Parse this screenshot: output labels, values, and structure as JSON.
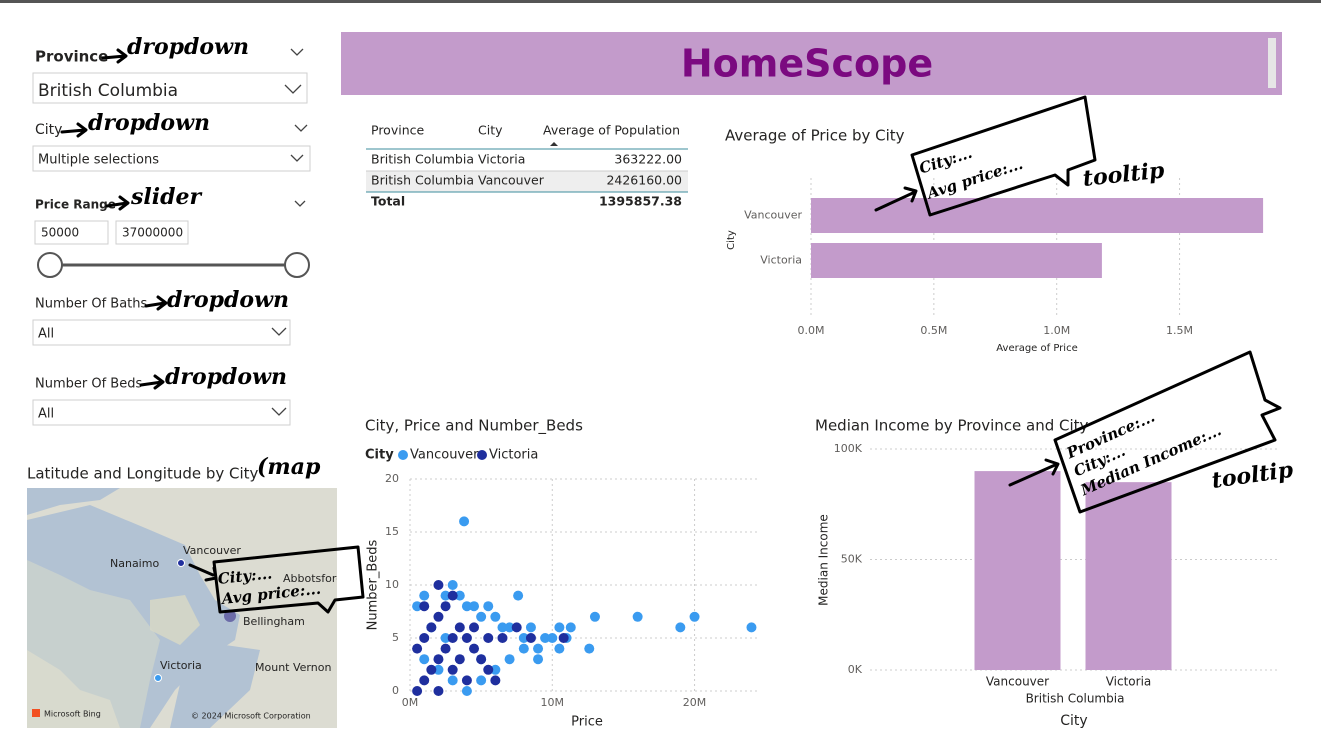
{
  "header": {
    "title": "HomeScope"
  },
  "filters": {
    "province": {
      "label": "Province",
      "value": "British Columbia"
    },
    "city": {
      "label": "City",
      "value": "Multiple selections"
    },
    "price_range": {
      "label": "Price Range",
      "min": 50000,
      "max": 37000000
    },
    "baths": {
      "label": "Number Of Baths",
      "value": "All"
    },
    "beds": {
      "label": "Number Of Beds",
      "value": "All"
    }
  },
  "table": {
    "columns": [
      "Province",
      "City",
      "Average of Population"
    ],
    "rows": [
      [
        "British Columbia",
        "Victoria",
        "363222.00"
      ],
      [
        "British Columbia",
        "Vancouver",
        "2426160.00"
      ]
    ],
    "total": {
      "label": "Total",
      "value": "1395857.38"
    }
  },
  "map": {
    "title": "Latitude and Longitude by City",
    "labels": [
      "Nanaimo",
      "Vancouver",
      "Abbotsford",
      "Bellingham",
      "Victoria",
      "Mount Vernon"
    ],
    "attribution": "Microsoft Bing",
    "copyright": "© 2024 Microsoft Corporation"
  },
  "annotations": [
    "dropdown",
    "dropdown",
    "slider",
    "dropdown",
    "dropdown",
    "(map",
    "City:...",
    "Avg price:...",
    "City:...",
    "Avg price:...",
    "tooltip",
    "Province:...",
    "City:...",
    "Median Income:...",
    "tooltip"
  ],
  "chart_data": [
    {
      "type": "bar",
      "orientation": "horizontal",
      "title": "Average of Price by City",
      "categories": [
        "Vancouver",
        "Victoria"
      ],
      "values": [
        1840000,
        1184000
      ],
      "color": "#c39bcb",
      "xlim": [
        0,
        1860000
      ],
      "xticks": [
        {
          "value": 0,
          "label": "0.0M"
        },
        {
          "value": 500000,
          "label": "0.5M"
        },
        {
          "value": 1000000,
          "label": "1.0M"
        },
        {
          "value": 1500000,
          "label": "1.5M"
        }
      ],
      "xlabel": "Average of Price",
      "ylabel": "City",
      "grid": true
    },
    {
      "type": "scatter",
      "title": "City, Price and Number_Beds",
      "legend_title": "City",
      "series": [
        {
          "name": "Vancouver",
          "color": "#3a9bf0",
          "x": [
            500000,
            1000000,
            2500000,
            3000000,
            3500000,
            4000000,
            4500000,
            5000000,
            5500000,
            6000000,
            6500000,
            7000000,
            7600000,
            8000000,
            8500000,
            9000000,
            9500000,
            10000000,
            10500000,
            11000000,
            11300000,
            12600000,
            13000000,
            16000000,
            19000000,
            20000000,
            24000000,
            3800000,
            1000000,
            2000000,
            3000000,
            4000000,
            5000000,
            6000000,
            7000000,
            8000000,
            9000000,
            10500000,
            1500000,
            2500000,
            5000000
          ],
          "values": [
            8,
            9,
            9,
            10,
            9,
            8,
            8,
            7,
            8,
            7,
            6,
            6,
            9,
            5,
            6,
            4,
            5,
            5,
            6,
            5,
            6,
            4,
            7,
            7,
            6,
            7,
            6,
            16,
            3,
            2,
            1,
            0,
            1,
            2,
            3,
            4,
            3,
            4,
            6,
            5,
            3
          ]
        },
        {
          "name": "Victoria",
          "color": "#1f2f9e",
          "x": [
            500000,
            1000000,
            1500000,
            2000000,
            2500000,
            3000000,
            3500000,
            4000000,
            4500000,
            5000000,
            5500000,
            6000000,
            1000000,
            1500000,
            2000000,
            2500000,
            2000000,
            3000000,
            1000000,
            500000,
            3500000,
            4500000,
            6500000,
            7500000,
            8500000,
            10800000,
            2000000,
            3000000,
            4000000,
            5500000
          ],
          "values": [
            0,
            1,
            2,
            3,
            4,
            5,
            6,
            5,
            4,
            3,
            2,
            1,
            5,
            6,
            7,
            8,
            10,
            9,
            8,
            4,
            3,
            6,
            5,
            6,
            5,
            5,
            0,
            2,
            1,
            5
          ]
        }
      ],
      "xlim": [
        0,
        24600000
      ],
      "xticks": [
        {
          "value": 0,
          "label": "0M"
        },
        {
          "value": 10000000,
          "label": "10M"
        },
        {
          "value": 20000000,
          "label": "20M"
        }
      ],
      "ylim": [
        0,
        20
      ],
      "yticks": [
        0,
        5,
        10,
        15,
        20
      ],
      "xlabel": "Price",
      "ylabel": "Number_Beds",
      "grid": true
    },
    {
      "type": "bar",
      "orientation": "vertical",
      "title": "Median Income by Province and City",
      "categories": [
        "Vancouver",
        "Victoria"
      ],
      "group_label": "British Columbia",
      "values": [
        90000,
        85000
      ],
      "color": "#c39bcb",
      "ylim": [
        0,
        100000
      ],
      "yticks": [
        {
          "value": 0,
          "label": "0K"
        },
        {
          "value": 50000,
          "label": "50K"
        },
        {
          "value": 100000,
          "label": "100K"
        }
      ],
      "xlabel": "City",
      "ylabel": "Median Income",
      "grid": true
    }
  ]
}
